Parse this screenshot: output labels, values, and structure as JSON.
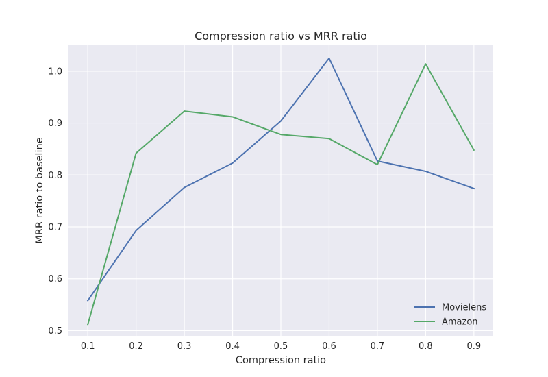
{
  "chart_data": {
    "type": "line",
    "title": "Compression ratio vs MRR ratio",
    "xlabel": "Compression ratio",
    "ylabel": "MRR ratio to baseline",
    "x": [
      0.1,
      0.2,
      0.3,
      0.4,
      0.5,
      0.6,
      0.7,
      0.8,
      0.9
    ],
    "x_ticks": [
      "0.1",
      "0.2",
      "0.3",
      "0.4",
      "0.5",
      "0.6",
      "0.7",
      "0.8",
      "0.9"
    ],
    "y_ticks": [
      "0.5",
      "0.6",
      "0.7",
      "0.8",
      "0.9",
      "1.0"
    ],
    "xlim": [
      0.06,
      0.94
    ],
    "ylim": [
      0.49,
      1.05
    ],
    "grid": true,
    "legend_position": "lower-right",
    "background_color": "#eaeaf2",
    "series": [
      {
        "name": "Movielens",
        "color": "#4c72b0",
        "values": [
          0.558,
          0.693,
          0.776,
          0.823,
          0.904,
          1.025,
          0.827,
          0.807,
          0.774
        ]
      },
      {
        "name": "Amazon",
        "color": "#55a868",
        "values": [
          0.512,
          0.842,
          0.923,
          0.912,
          0.878,
          0.87,
          0.82,
          1.014,
          0.848
        ]
      }
    ]
  }
}
